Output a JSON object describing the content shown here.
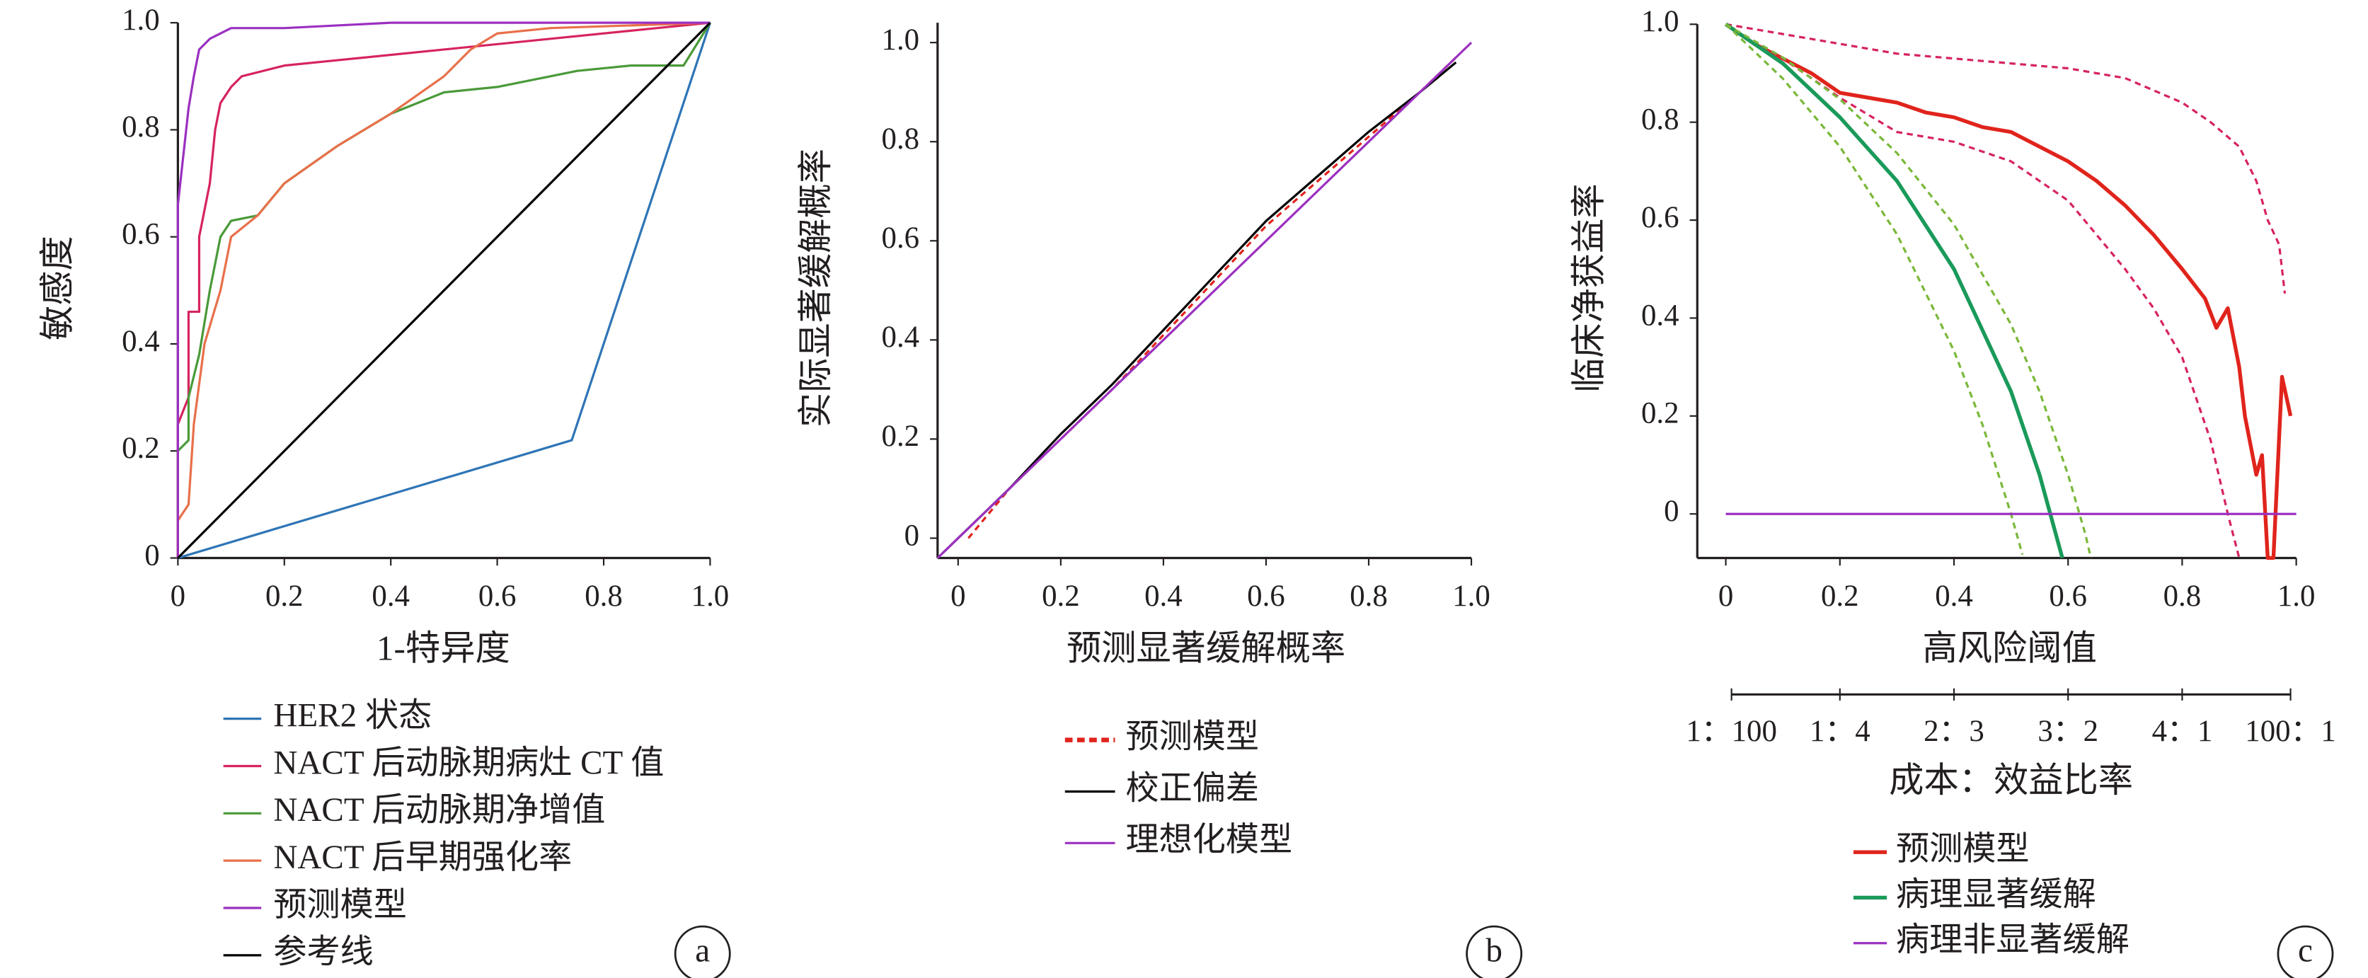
{
  "chart_data": [
    {
      "type": "line",
      "panel_label": "a",
      "x_label": "1-特异度",
      "y_label": "敏感度",
      "xlim": [
        0,
        1
      ],
      "ylim": [
        0,
        1
      ],
      "xticks": [
        0,
        0.2,
        0.4,
        0.6,
        0.8,
        {
          "value": 1,
          "label": "1.0"
        }
      ],
      "yticks": [
        0,
        0.2,
        0.4,
        0.6,
        0.8,
        {
          "value": 1,
          "label": "1.0"
        }
      ],
      "series": [
        {
          "name": "HER2 状态",
          "color": "#2e75b6",
          "x": [
            0,
            0.74,
            1
          ],
          "values": [
            0,
            0.22,
            1
          ]
        },
        {
          "name": "NACT 后动脉期病灶 CT 值",
          "color": "#d6245e",
          "x": [
            0,
            0,
            0.02,
            0.02,
            0.04,
            0.04,
            0.06,
            0.07,
            0.08,
            0.1,
            0.12,
            0.2,
            0.3,
            0.5,
            0.7,
            0.9,
            1
          ],
          "values": [
            0,
            0.25,
            0.3,
            0.46,
            0.46,
            0.6,
            0.7,
            0.8,
            0.85,
            0.88,
            0.9,
            0.92,
            0.93,
            0.95,
            0.97,
            0.99,
            1
          ]
        },
        {
          "name": "NACT 后动脉期净增值",
          "color": "#4a9a3a",
          "x": [
            0,
            0,
            0.02,
            0.02,
            0.04,
            0.06,
            0.08,
            0.1,
            0.15,
            0.2,
            0.3,
            0.4,
            0.5,
            0.6,
            0.75,
            0.85,
            0.95,
            1
          ],
          "values": [
            0,
            0.2,
            0.22,
            0.3,
            0.38,
            0.5,
            0.6,
            0.63,
            0.64,
            0.7,
            0.77,
            0.83,
            0.87,
            0.88,
            0.91,
            0.92,
            0.92,
            1
          ]
        },
        {
          "name": "NACT 后早期强化率",
          "color": "#e8704a",
          "x": [
            0,
            0,
            0.02,
            0.03,
            0.05,
            0.08,
            0.1,
            0.15,
            0.2,
            0.3,
            0.4,
            0.5,
            0.55,
            0.6,
            0.7,
            1
          ],
          "values": [
            0,
            0.07,
            0.1,
            0.25,
            0.4,
            0.5,
            0.6,
            0.64,
            0.7,
            0.77,
            0.83,
            0.9,
            0.95,
            0.98,
            0.99,
            1
          ]
        },
        {
          "name": "预测模型",
          "color": "#9b30c0",
          "x": [
            0,
            0,
            0.01,
            0.02,
            0.03,
            0.04,
            0.06,
            0.1,
            0.2,
            0.4,
            1
          ],
          "values": [
            0,
            0.66,
            0.75,
            0.84,
            0.9,
            0.95,
            0.97,
            0.99,
            0.99,
            1,
            1
          ]
        },
        {
          "name": "参考线",
          "color": "#000000",
          "x": [
            0,
            1
          ],
          "values": [
            0,
            1
          ]
        }
      ]
    },
    {
      "type": "line",
      "panel_label": "b",
      "x_label": "预测显著缓解概率",
      "y_label": "实际显著缓解概率",
      "xlim": [
        -0.04,
        1.0
      ],
      "ylim": [
        -0.04,
        1.04
      ],
      "xticks": [
        0,
        0.2,
        0.4,
        0.6,
        0.8,
        {
          "value": 1,
          "label": "1.0"
        }
      ],
      "yticks": [
        0,
        0.2,
        0.4,
        0.6,
        0.8,
        {
          "value": 1,
          "label": "1.0"
        }
      ],
      "series": [
        {
          "name": "预测模型",
          "color": "#e0241c",
          "dash": true,
          "x": [
            0.02,
            0.1,
            0.2,
            0.3,
            0.4,
            0.5,
            0.6,
            0.7,
            0.8,
            0.9,
            0.97
          ],
          "values": [
            0,
            0.1,
            0.2,
            0.3,
            0.41,
            0.52,
            0.63,
            0.72,
            0.81,
            0.9,
            0.97
          ]
        },
        {
          "name": "校正偏差",
          "color": "#000000",
          "x": [
            -0.03,
            0.1,
            0.2,
            0.3,
            0.4,
            0.5,
            0.6,
            0.7,
            0.8,
            0.9,
            0.97
          ],
          "values": [
            -0.03,
            0.1,
            0.21,
            0.31,
            0.42,
            0.53,
            0.64,
            0.73,
            0.82,
            0.9,
            0.96
          ]
        },
        {
          "name": "理想化模型",
          "color": "#9b30c0",
          "x": [
            -0.04,
            1
          ],
          "values": [
            -0.04,
            1
          ]
        }
      ]
    },
    {
      "type": "line",
      "panel_label": "c",
      "x_label": "高风险阈值",
      "y_label": "临床净获益率",
      "x2_label": "成本：效益比率",
      "xlim": [
        -0.05,
        1.0
      ],
      "ylim": [
        -0.09,
        1.0
      ],
      "xticks": [
        0,
        0.2,
        0.4,
        0.6,
        0.8,
        {
          "value": 1,
          "label": "1.0"
        }
      ],
      "yticks": [
        0,
        0.2,
        0.4,
        0.6,
        0.8,
        {
          "value": 1,
          "label": "1.0"
        }
      ],
      "x2ticks": [
        {
          "value": 0.01,
          "label": "1：100"
        },
        {
          "value": 0.2,
          "label": "1：4"
        },
        {
          "value": 0.4,
          "label": "2：3"
        },
        {
          "value": 0.6,
          "label": "3：2"
        },
        {
          "value": 0.8,
          "label": "4：1"
        },
        {
          "value": 0.99,
          "label": "100：1"
        }
      ],
      "series": [
        {
          "name": "预测模型",
          "color": "#e0241c",
          "width": 2.5,
          "x": [
            0,
            0.05,
            0.1,
            0.15,
            0.2,
            0.25,
            0.3,
            0.35,
            0.4,
            0.45,
            0.5,
            0.55,
            0.6,
            0.65,
            0.7,
            0.75,
            0.8,
            0.84,
            0.86,
            0.88,
            0.9,
            0.91,
            0.93,
            0.94,
            0.95,
            0.96,
            0.975,
            0.99
          ],
          "values": [
            1,
            0.96,
            0.93,
            0.9,
            0.86,
            0.85,
            0.84,
            0.82,
            0.81,
            0.79,
            0.78,
            0.75,
            0.72,
            0.68,
            0.63,
            0.57,
            0.5,
            0.44,
            0.38,
            0.42,
            0.3,
            0.2,
            0.08,
            0.12,
            -0.09,
            -0.09,
            0.28,
            0.2
          ]
        },
        {
          "color": "#d6245e",
          "dash": true,
          "x": [
            0,
            0.1,
            0.2,
            0.3,
            0.4,
            0.5,
            0.6,
            0.7,
            0.8,
            0.85,
            0.9,
            0.93,
            0.95,
            0.97,
            0.98
          ],
          "values": [
            1,
            0.98,
            0.96,
            0.94,
            0.93,
            0.92,
            0.91,
            0.89,
            0.84,
            0.8,
            0.75,
            0.68,
            0.6,
            0.55,
            0.45
          ]
        },
        {
          "color": "#d6245e",
          "dash": true,
          "x": [
            0,
            0.1,
            0.2,
            0.3,
            0.4,
            0.5,
            0.6,
            0.7,
            0.75,
            0.8,
            0.85,
            0.88,
            0.9
          ],
          "values": [
            1,
            0.93,
            0.85,
            0.78,
            0.76,
            0.72,
            0.64,
            0.5,
            0.42,
            0.32,
            0.15,
            0,
            -0.09
          ]
        },
        {
          "name": "病理显著缓解",
          "color": "#1a9a5a",
          "width": 2.5,
          "x": [
            0,
            0.1,
            0.2,
            0.3,
            0.4,
            0.5,
            0.55,
            0.59
          ],
          "values": [
            1,
            0.92,
            0.81,
            0.68,
            0.5,
            0.25,
            0.08,
            -0.09
          ]
        },
        {
          "color": "#7ab83a",
          "dash": true,
          "x": [
            0,
            0.1,
            0.2,
            0.3,
            0.4,
            0.45,
            0.5,
            0.52
          ],
          "values": [
            1,
            0.889,
            0.75,
            0.571,
            0.333,
            0.182,
            0,
            -0.083
          ]
        },
        {
          "color": "#7ab83a",
          "dash": true,
          "x": [
            0,
            0.1,
            0.2,
            0.3,
            0.4,
            0.5,
            0.55,
            0.6,
            0.63,
            0.64
          ],
          "values": [
            1,
            0.932,
            0.847,
            0.737,
            0.591,
            0.387,
            0.25,
            0.08,
            -0.04,
            -0.09
          ]
        },
        {
          "name": "病理非显著缓解",
          "color": "#9b30c0",
          "x": [
            0,
            1
          ],
          "values": [
            0,
            0
          ]
        }
      ]
    }
  ]
}
